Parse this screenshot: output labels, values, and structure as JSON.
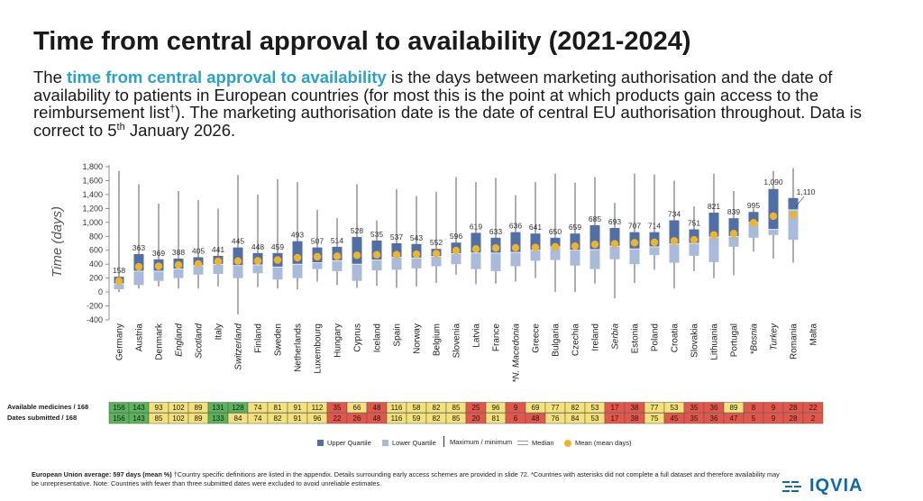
{
  "header": {
    "title": "Time from central approval to availability (2021-2024)",
    "intro_pre": "The ",
    "intro_highlight": "time from central approval to availability",
    "intro_post1": " is the days between marketing authorisation and the date of availability to patients in European countries (for most this is the point at which products gain access to the reimbursement list",
    "intro_dagger": "†",
    "intro_post2": "). The marketing authorisation date is the date of central EU authorisation throughout. Data is correct to 5",
    "intro_sup": "th",
    "intro_post3": " January 2026."
  },
  "colors": {
    "upper_quartile": "#4f6fa6",
    "lower_quartile": "#a9bbdb",
    "mean": "#f0b429",
    "whisker": "#333333",
    "title_highlight": "#2aa3c8",
    "good": "#58b55a",
    "mid": "#f4e17a",
    "bad": "#e5564a"
  },
  "chart_data": {
    "type": "box",
    "ylabel": "Time (days)",
    "ylim": [
      -400,
      1800
    ],
    "yticks": [
      "-400",
      "-200",
      "0",
      "200",
      "400",
      "600",
      "800",
      "1,000",
      "1,200",
      "1,400",
      "1,600",
      "1,800"
    ],
    "ytick_values": [
      -400,
      -200,
      0,
      200,
      400,
      600,
      800,
      1000,
      1200,
      1400,
      1600,
      1800
    ],
    "countries": [
      {
        "name": "Germany",
        "italic": false,
        "min": 0,
        "q1": 40,
        "median": 120,
        "q3": 220,
        "max": 1740,
        "mean": 158,
        "label": "158"
      },
      {
        "name": "Austria",
        "italic": false,
        "min": 50,
        "q1": 100,
        "median": 300,
        "q3": 545,
        "max": 1550,
        "mean": 363,
        "label": "363"
      },
      {
        "name": "Denmark",
        "italic": false,
        "min": 80,
        "q1": 160,
        "median": 300,
        "q3": 470,
        "max": 1270,
        "mean": 369,
        "label": "369"
      },
      {
        "name": "England",
        "italic": true,
        "min": 50,
        "q1": 200,
        "median": 330,
        "q3": 480,
        "max": 1450,
        "mean": 388,
        "label": "388"
      },
      {
        "name": "Scotland",
        "italic": true,
        "min": 50,
        "q1": 250,
        "median": 380,
        "q3": 500,
        "max": 1320,
        "mean": 405,
        "label": "405"
      },
      {
        "name": "Italy",
        "italic": false,
        "min": 80,
        "q1": 260,
        "median": 400,
        "q3": 520,
        "max": 1200,
        "mean": 441,
        "label": "441"
      },
      {
        "name": "Switzerland",
        "italic": true,
        "min": -320,
        "q1": 200,
        "median": 380,
        "q3": 640,
        "max": 1680,
        "mean": 445,
        "label": "445"
      },
      {
        "name": "Finland",
        "italic": false,
        "min": 70,
        "q1": 270,
        "median": 390,
        "q3": 560,
        "max": 1400,
        "mean": 448,
        "label": "448"
      },
      {
        "name": "Sweden",
        "italic": false,
        "min": 50,
        "q1": 180,
        "median": 360,
        "q3": 560,
        "max": 1620,
        "mean": 459,
        "label": "459"
      },
      {
        "name": "Netherlands",
        "italic": false,
        "min": 40,
        "q1": 200,
        "median": 400,
        "q3": 730,
        "max": 1580,
        "mean": 493,
        "label": "493"
      },
      {
        "name": "Luxembourg",
        "italic": false,
        "min": 150,
        "q1": 330,
        "median": 420,
        "q3": 640,
        "max": 1180,
        "mean": 507,
        "label": "507"
      },
      {
        "name": "Hungary",
        "italic": false,
        "min": 100,
        "q1": 300,
        "median": 450,
        "q3": 650,
        "max": 1060,
        "mean": 514,
        "label": "514"
      },
      {
        "name": "Cyprus",
        "italic": false,
        "min": 60,
        "q1": 160,
        "median": 400,
        "q3": 790,
        "max": 1550,
        "mean": 528,
        "label": "528"
      },
      {
        "name": "Iceland",
        "italic": false,
        "min": 90,
        "q1": 310,
        "median": 460,
        "q3": 740,
        "max": 1030,
        "mean": 535,
        "label": "535"
      },
      {
        "name": "Spain",
        "italic": false,
        "min": 60,
        "q1": 320,
        "median": 500,
        "q3": 700,
        "max": 1480,
        "mean": 537,
        "label": "537"
      },
      {
        "name": "Norway",
        "italic": false,
        "min": 80,
        "q1": 340,
        "median": 490,
        "q3": 690,
        "max": 1380,
        "mean": 543,
        "label": "543"
      },
      {
        "name": "Belgium",
        "italic": false,
        "min": 130,
        "q1": 370,
        "median": 510,
        "q3": 620,
        "max": 1440,
        "mean": 552,
        "label": "552"
      },
      {
        "name": "Slovenia",
        "italic": false,
        "min": 250,
        "q1": 400,
        "median": 550,
        "q3": 710,
        "max": 1650,
        "mean": 596,
        "label": "596"
      },
      {
        "name": "Latvia",
        "italic": false,
        "min": 110,
        "q1": 330,
        "median": 560,
        "q3": 850,
        "max": 1580,
        "mean": 619,
        "label": "619"
      },
      {
        "name": "France",
        "italic": false,
        "min": 120,
        "q1": 300,
        "median": 560,
        "q3": 780,
        "max": 1640,
        "mean": 633,
        "label": "633"
      },
      {
        "name": "*N. Macedonia",
        "italic": true,
        "min": 150,
        "q1": 370,
        "median": 570,
        "q3": 860,
        "max": 1390,
        "mean": 636,
        "label": "636"
      },
      {
        "name": "Greece",
        "italic": false,
        "min": 200,
        "q1": 450,
        "median": 600,
        "q3": 840,
        "max": 1580,
        "mean": 641,
        "label": "641"
      },
      {
        "name": "Bulgaria",
        "italic": false,
        "min": 0,
        "q1": 460,
        "median": 650,
        "q3": 780,
        "max": 1700,
        "mean": 650,
        "label": "650"
      },
      {
        "name": "Czechia",
        "italic": false,
        "min": 0,
        "q1": 380,
        "median": 600,
        "q3": 840,
        "max": 1570,
        "mean": 659,
        "label": "659"
      },
      {
        "name": "Ireland",
        "italic": false,
        "min": 120,
        "q1": 330,
        "median": 610,
        "q3": 960,
        "max": 1650,
        "mean": 685,
        "label": "685"
      },
      {
        "name": "Serbia",
        "italic": true,
        "min": -90,
        "q1": 470,
        "median": 660,
        "q3": 920,
        "max": 1280,
        "mean": 693,
        "label": "693"
      },
      {
        "name": "Estonia",
        "italic": false,
        "min": 130,
        "q1": 400,
        "median": 620,
        "q3": 860,
        "max": 1700,
        "mean": 707,
        "label": "707"
      },
      {
        "name": "Poland",
        "italic": false,
        "min": 320,
        "q1": 530,
        "median": 650,
        "q3": 860,
        "max": 1690,
        "mean": 714,
        "label": "714"
      },
      {
        "name": "Croatia",
        "italic": false,
        "min": 50,
        "q1": 420,
        "median": 690,
        "q3": 1030,
        "max": 1600,
        "mean": 734,
        "label": "734"
      },
      {
        "name": "Slovakia",
        "italic": false,
        "min": 300,
        "q1": 520,
        "median": 700,
        "q3": 900,
        "max": 1230,
        "mean": 751,
        "label": "751"
      },
      {
        "name": "Lithuania",
        "italic": false,
        "min": 200,
        "q1": 430,
        "median": 790,
        "q3": 1140,
        "max": 1700,
        "mean": 821,
        "label": "821"
      },
      {
        "name": "Portugal",
        "italic": false,
        "min": 240,
        "q1": 650,
        "median": 800,
        "q3": 1060,
        "max": 1450,
        "mean": 839,
        "label": "839"
      },
      {
        "name": "*Bosnia",
        "italic": true,
        "min": 580,
        "q1": 780,
        "median": 1000,
        "q3": 1150,
        "max": 1200,
        "mean": 995,
        "label": "995"
      },
      {
        "name": "Turkey",
        "italic": true,
        "min": 480,
        "q1": 820,
        "median": 900,
        "q3": 1480,
        "max": 1740,
        "mean": 1090,
        "label": "1,090"
      },
      {
        "name": "Romania",
        "italic": false,
        "min": 420,
        "q1": 750,
        "median": 1180,
        "q3": 1350,
        "max": 1780,
        "mean": 1110,
        "label": "1,110"
      },
      {
        "name": "Malta",
        "italic": false,
        "min": null,
        "q1": null,
        "median": null,
        "q3": null,
        "max": null,
        "mean": null,
        "label": ""
      }
    ]
  },
  "table": {
    "row1_label": "Available medicines / 168",
    "row2_label": "Dates submitted / 168",
    "available": [
      "156",
      "143",
      "93",
      "102",
      "89",
      "131",
      "128",
      "74",
      "81",
      "91",
      "112",
      "35",
      "66",
      "48",
      "116",
      "58",
      "82",
      "85",
      "25",
      "96",
      "9",
      "69",
      "77",
      "82",
      "53",
      "17",
      "38",
      "77",
      "53",
      "35",
      "36",
      "89",
      "8",
      "9",
      "28",
      "22"
    ],
    "available_colors": [
      "good",
      "good",
      "mid",
      "mid",
      "mid",
      "good",
      "good",
      "mid",
      "mid",
      "mid",
      "mid",
      "bad",
      "mid",
      "bad",
      "mid",
      "mid",
      "mid",
      "mid",
      "bad",
      "mid",
      "bad",
      "mid",
      "mid",
      "mid",
      "mid",
      "bad",
      "bad",
      "mid",
      "mid",
      "bad",
      "bad",
      "mid",
      "bad",
      "bad",
      "bad",
      "bad"
    ],
    "submitted": [
      "156",
      "143",
      "85",
      "102",
      "89",
      "133",
      "84",
      "74",
      "82",
      "91",
      "96",
      "22",
      "26",
      "48",
      "116",
      "59",
      "82",
      "85",
      "20",
      "81",
      "6",
      "48",
      "76",
      "84",
      "53",
      "17",
      "38",
      "75",
      "45",
      "35",
      "36",
      "47",
      "5",
      "9",
      "28",
      "2"
    ],
    "submitted_colors": [
      "good",
      "good",
      "mid",
      "mid",
      "mid",
      "good",
      "mid",
      "mid",
      "mid",
      "mid",
      "mid",
      "bad",
      "bad",
      "bad",
      "mid",
      "mid",
      "mid",
      "mid",
      "bad",
      "mid",
      "bad",
      "bad",
      "mid",
      "mid",
      "mid",
      "bad",
      "bad",
      "mid",
      "bad",
      "bad",
      "bad",
      "bad",
      "bad",
      "bad",
      "bad",
      "bad"
    ]
  },
  "legend": {
    "upper": "Upper Quartile",
    "lower": "Lower Quartile",
    "minmax": "Maximum / minimum",
    "median": "Median",
    "mean": "Mean (mean days)"
  },
  "footnote": {
    "bold": "European Union average: 597 days (mean %)",
    "text": " †Country specific definitions are listed in the appendix. Details surrounding early access schemes are provided in slide 72. *Countries with asterisks did not complete a full dataset and therefore availability may be unrepresentative. Note: Countries with fewer than three submitted dates were excluded to avoid unreliable estimates."
  },
  "logo": {
    "text": "IQVIA"
  }
}
